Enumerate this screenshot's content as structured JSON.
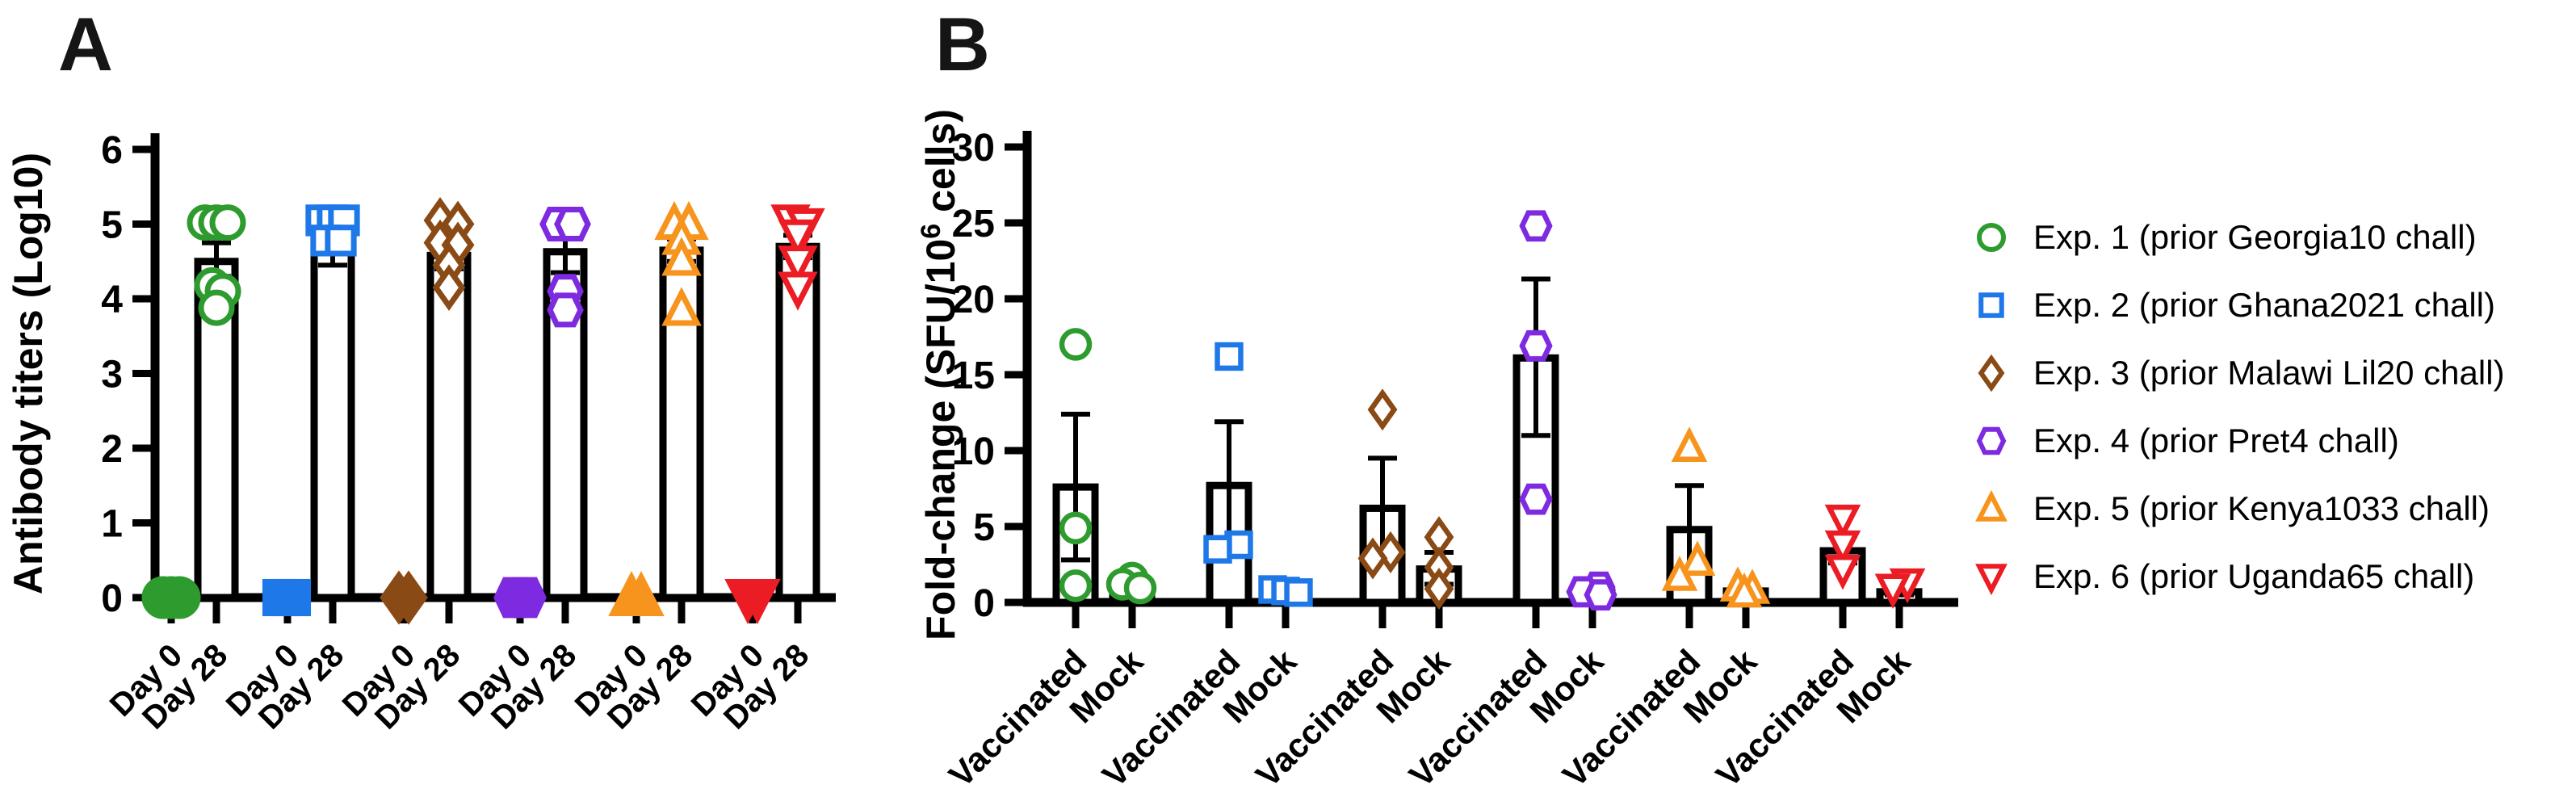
{
  "figure": {
    "background": "#ffffff",
    "panel_labels": [
      "A",
      "B"
    ]
  },
  "colors": {
    "axis": "#000000",
    "bar_fill": "#ffffff",
    "exp1_green": "#2e9b2e",
    "exp2_blue": "#1e78e8",
    "exp3_brown": "#8a4a15",
    "exp4_purple": "#7d2ae0",
    "exp5_orange": "#f7941d",
    "exp6_red": "#ec1c24"
  },
  "legend": {
    "items": [
      {
        "marker": "circle",
        "color": "#2e9b2e",
        "label": "Exp. 1 (prior Georgia10 chall)"
      },
      {
        "marker": "square",
        "color": "#1e78e8",
        "label": "Exp. 2 (prior Ghana2021 chall)"
      },
      {
        "marker": "diamond",
        "color": "#8a4a15",
        "label": "Exp. 3 (prior Malawi Lil20 chall)"
      },
      {
        "marker": "hexagon",
        "color": "#7d2ae0",
        "label": "Exp. 4 (prior Pret4 chall)"
      },
      {
        "marker": "triangle-up",
        "color": "#f7941d",
        "label": "Exp. 5 (prior Kenya1033 chall)"
      },
      {
        "marker": "triangle-down",
        "color": "#ec1c24",
        "label": "Exp. 6 (prior Uganda65 chall)"
      }
    ]
  },
  "chart_data": [
    {
      "panel_label": "A",
      "type": "bar",
      "title": "",
      "ylabel": "Antibody titers (Log10)",
      "ylabel_parts": [
        {
          "t": "Antibody titers (Log10)"
        }
      ],
      "ylim": [
        0,
        6
      ],
      "yticks": [
        0,
        1,
        2,
        3,
        4,
        5,
        6
      ],
      "categories": [
        "Day 0",
        "Day 28"
      ],
      "grid": false,
      "groups": [
        {
          "exp": "Exp. 1",
          "marker": "circle",
          "color": "#2e9b2e",
          "bars": [
            {
              "label": "Day 0",
              "value": 0,
              "solid_points": true,
              "points": [
                {
                  "v": 0,
                  "dx": -10
                },
                {
                  "v": 0,
                  "dx": 0
                },
                {
                  "v": 0,
                  "dx": 10
                }
              ]
            },
            {
              "label": "Day 28",
              "value": 4.5,
              "err": [
                4.3,
                4.75
              ],
              "points": [
                {
                  "v": 5.02,
                  "dx": -14
                },
                {
                  "v": 5.02,
                  "dx": 0
                },
                {
                  "v": 5.02,
                  "dx": 14
                },
                {
                  "v": 4.18,
                  "dx": -5
                },
                {
                  "v": 4.1,
                  "dx": 8
                },
                {
                  "v": 3.88,
                  "dx": 0
                }
              ]
            }
          ]
        },
        {
          "exp": "Exp. 2",
          "marker": "square",
          "color": "#1e78e8",
          "bars": [
            {
              "label": "Day 0",
              "value": 0,
              "solid_points": true,
              "points": [
                {
                  "v": 0,
                  "dx": -8
                },
                {
                  "v": 0,
                  "dx": 6
                }
              ]
            },
            {
              "label": "Day 28",
              "value": 4.62,
              "err": [
                4.45,
                4.8
              ],
              "points": [
                {
                  "v": 5.05,
                  "dx": -14
                },
                {
                  "v": 5.05,
                  "dx": 0
                },
                {
                  "v": 5.05,
                  "dx": 14
                },
                {
                  "v": 4.78,
                  "dx": -8
                },
                {
                  "v": 4.78,
                  "dx": 10
                }
              ]
            }
          ]
        },
        {
          "exp": "Exp. 3",
          "marker": "diamond",
          "color": "#8a4a15",
          "bars": [
            {
              "label": "Day 0",
              "value": 0,
              "solid_points": true,
              "points": [
                {
                  "v": 0,
                  "dx": -6
                },
                {
                  "v": 0,
                  "dx": 6
                }
              ]
            },
            {
              "label": "Day 28",
              "value": 4.58,
              "err": [
                4.4,
                4.72
              ],
              "points": [
                {
                  "v": 5.05,
                  "dx": -11
                },
                {
                  "v": 5.0,
                  "dx": 11
                },
                {
                  "v": 4.75,
                  "dx": -11
                },
                {
                  "v": 4.72,
                  "dx": 11
                },
                {
                  "v": 4.45,
                  "dx": 0
                },
                {
                  "v": 4.15,
                  "dx": 0
                }
              ]
            }
          ]
        },
        {
          "exp": "Exp. 4",
          "marker": "hexagon",
          "color": "#7d2ae0",
          "bars": [
            {
              "label": "Day 0",
              "value": 0,
              "solid_points": true,
              "points": [
                {
                  "v": 0,
                  "dx": -6
                },
                {
                  "v": 0,
                  "dx": 6
                }
              ]
            },
            {
              "label": "Day 28",
              "value": 4.63,
              "err": [
                4.35,
                4.93
              ],
              "points": [
                {
                  "v": 5.0,
                  "dx": -9
                },
                {
                  "v": 5.0,
                  "dx": 9
                },
                {
                  "v": 4.1,
                  "dx": 0
                },
                {
                  "v": 3.85,
                  "dx": 0
                }
              ]
            }
          ]
        },
        {
          "exp": "Exp. 5",
          "marker": "triangle-up",
          "color": "#f7941d",
          "bars": [
            {
              "label": "Day 0",
              "value": 0,
              "solid_points": true,
              "points": [
                {
                  "v": 0,
                  "dx": -6
                },
                {
                  "v": 0,
                  "dx": 6
                }
              ]
            },
            {
              "label": "Day 28",
              "value": 4.65,
              "err": [
                4.5,
                4.8
              ],
              "points": [
                {
                  "v": 5.0,
                  "dx": -9
                },
                {
                  "v": 5.0,
                  "dx": 9
                },
                {
                  "v": 4.8,
                  "dx": 0
                },
                {
                  "v": 4.52,
                  "dx": 0
                },
                {
                  "v": 3.85,
                  "dx": 0
                }
              ]
            }
          ]
        },
        {
          "exp": "Exp. 6",
          "marker": "triangle-down",
          "color": "#ec1c24",
          "bars": [
            {
              "label": "Day 0",
              "value": 0,
              "solid_points": true,
              "points": [
                {
                  "v": 0,
                  "dx": -6
                },
                {
                  "v": 0,
                  "dx": 6
                }
              ]
            },
            {
              "label": "Day 28",
              "value": 4.7,
              "err": [
                4.55,
                4.85
              ],
              "points": [
                {
                  "v": 5.05,
                  "dx": -9
                },
                {
                  "v": 5.0,
                  "dx": 9
                },
                {
                  "v": 4.85,
                  "dx": 0
                },
                {
                  "v": 4.5,
                  "dx": 0
                },
                {
                  "v": 4.15,
                  "dx": 0
                }
              ]
            }
          ]
        }
      ]
    },
    {
      "panel_label": "B",
      "type": "bar",
      "title": "",
      "ylabel": "Fold-change (SFU/10⁶ cells)",
      "ylabel_parts": [
        {
          "t": "Fold-change (SFU/10"
        },
        {
          "t": "6",
          "sup": true
        },
        {
          "t": " cells)"
        }
      ],
      "ylim": [
        0,
        30
      ],
      "yticks": [
        0,
        5,
        10,
        15,
        20,
        25,
        30
      ],
      "categories": [
        "Vaccinated",
        "Mock"
      ],
      "grid": false,
      "groups": [
        {
          "exp": "Exp. 1",
          "marker": "circle",
          "color": "#2e9b2e",
          "bars": [
            {
              "label": "Vaccinated",
              "value": 7.6,
              "err": [
                2.8,
                12.4
              ],
              "points": [
                {
                  "v": 17.0,
                  "dx": 0
                },
                {
                  "v": 4.9,
                  "dx": 0
                },
                {
                  "v": 1.1,
                  "dx": 0
                }
              ]
            },
            {
              "label": "Mock",
              "value": 1.0,
              "err": [
                0.8,
                1.3
              ],
              "points": [
                {
                  "v": 1.6,
                  "dx": 0
                },
                {
                  "v": 1.2,
                  "dx": -12
                },
                {
                  "v": 0.95,
                  "dx": 10
                }
              ]
            }
          ]
        },
        {
          "exp": "Exp. 2",
          "marker": "square",
          "color": "#1e78e8",
          "bars": [
            {
              "label": "Vaccinated",
              "value": 7.7,
              "err": [
                3.6,
                11.9
              ],
              "points": [
                {
                  "v": 16.2,
                  "dx": 0
                },
                {
                  "v": 3.8,
                  "dx": 12
                },
                {
                  "v": 3.5,
                  "dx": -14
                }
              ]
            },
            {
              "label": "Mock",
              "value": 0.75,
              "err": [
                0.55,
                0.95
              ],
              "points": [
                {
                  "v": 0.85,
                  "dx": -16
                },
                {
                  "v": 0.75,
                  "dx": 0
                },
                {
                  "v": 0.65,
                  "dx": 16
                }
              ]
            }
          ]
        },
        {
          "exp": "Exp. 3",
          "marker": "diamond",
          "color": "#8a4a15",
          "bars": [
            {
              "label": "Vaccinated",
              "value": 6.2,
              "err": [
                3.0,
                9.5
              ],
              "points": [
                {
                  "v": 12.7,
                  "dx": 0
                },
                {
                  "v": 3.3,
                  "dx": 10
                },
                {
                  "v": 2.9,
                  "dx": -12
                }
              ]
            },
            {
              "label": "Mock",
              "value": 2.2,
              "err": [
                1.2,
                3.3
              ],
              "points": [
                {
                  "v": 4.3,
                  "dx": 0
                },
                {
                  "v": 2.3,
                  "dx": 0
                },
                {
                  "v": 0.9,
                  "dx": 0
                }
              ]
            }
          ]
        },
        {
          "exp": "Exp. 4",
          "marker": "hexagon",
          "color": "#7d2ae0",
          "bars": [
            {
              "label": "Vaccinated",
              "value": 16.1,
              "err": [
                11.0,
                21.3
              ],
              "points": [
                {
                  "v": 24.8,
                  "dx": 0
                },
                {
                  "v": 16.9,
                  "dx": 0
                },
                {
                  "v": 6.8,
                  "dx": 0
                }
              ]
            },
            {
              "label": "Mock",
              "value": 0.65,
              "err": [
                0.45,
                0.85
              ],
              "points": [
                {
                  "v": 1.0,
                  "dx": 8
                },
                {
                  "v": 0.7,
                  "dx": -12
                },
                {
                  "v": 0.5,
                  "dx": 10
                }
              ]
            }
          ]
        },
        {
          "exp": "Exp. 5",
          "marker": "triangle-up",
          "color": "#f7941d",
          "bars": [
            {
              "label": "Vaccinated",
              "value": 4.8,
              "err": [
                2.0,
                7.7
              ],
              "points": [
                {
                  "v": 10.2,
                  "dx": 0
                },
                {
                  "v": 2.7,
                  "dx": 10
                },
                {
                  "v": 1.7,
                  "dx": -12
                }
              ]
            },
            {
              "label": "Mock",
              "value": 0.75,
              "err": [
                0.55,
                0.95
              ],
              "points": [
                {
                  "v": 1.0,
                  "dx": -10
                },
                {
                  "v": 0.85,
                  "dx": 8
                },
                {
                  "v": 0.6,
                  "dx": -2
                }
              ]
            }
          ]
        },
        {
          "exp": "Exp. 6",
          "marker": "triangle-down",
          "color": "#ec1c24",
          "bars": [
            {
              "label": "Vaccinated",
              "value": 3.4,
              "err": [
                2.6,
                4.4
              ],
              "points": [
                {
                  "v": 5.5,
                  "dx": 0
                },
                {
                  "v": 3.8,
                  "dx": 0
                },
                {
                  "v": 2.2,
                  "dx": 0
                }
              ]
            },
            {
              "label": "Mock",
              "value": 0.7,
              "err": [
                0.5,
                0.9
              ],
              "points": [
                {
                  "v": 1.3,
                  "dx": 10
                },
                {
                  "v": 0.95,
                  "dx": -8
                }
              ]
            }
          ]
        }
      ]
    }
  ]
}
